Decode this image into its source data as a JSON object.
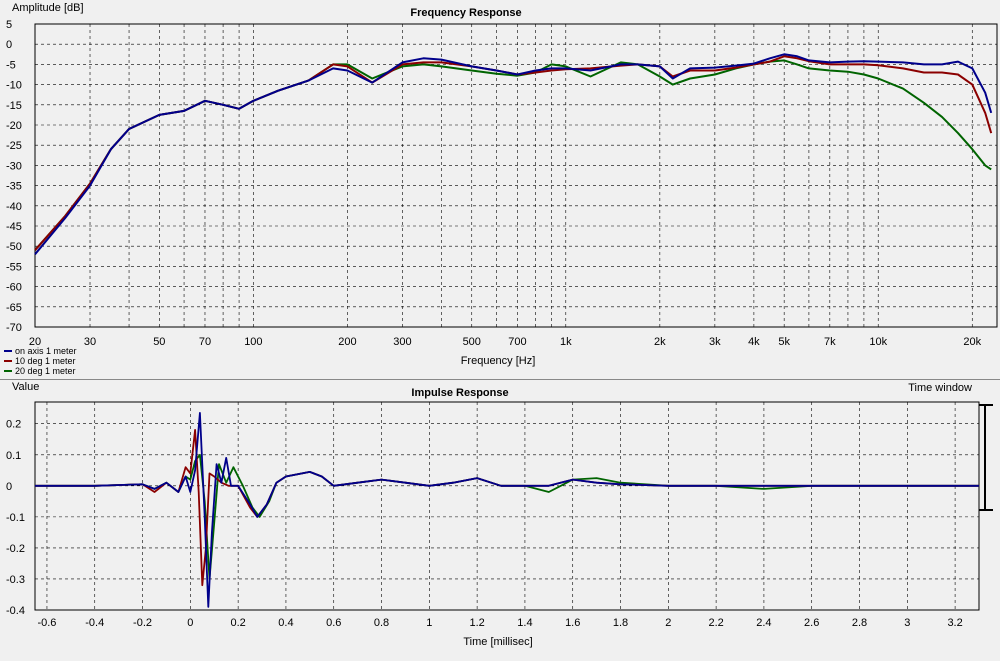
{
  "window": {
    "time_window_label": "Time window"
  },
  "chart_data": [
    {
      "type": "line",
      "title": "Frequency Response",
      "xlabel": "Frequency [Hz]",
      "ylabel": "Amplitude [dB]",
      "x_scale": "log",
      "xlim": [
        20,
        24000
      ],
      "ylim": [
        -70,
        5
      ],
      "xtick_values": [
        20,
        30,
        50,
        70,
        100,
        200,
        300,
        500,
        700,
        1000,
        2000,
        3000,
        4000,
        5000,
        7000,
        10000,
        20000
      ],
      "xtick_labels": [
        "20",
        "30",
        "50",
        "70",
        "100",
        "200",
        "300",
        "500",
        "700",
        "1k",
        "2k",
        "3k",
        "4k",
        "5k",
        "7k",
        "10k",
        "20k"
      ],
      "ytick_values": [
        5,
        0,
        -5,
        -10,
        -15,
        -20,
        -25,
        -30,
        -35,
        -40,
        -45,
        -50,
        -55,
        -60,
        -65,
        -70
      ],
      "ytick_labels": [
        "5",
        "0",
        "-5",
        "-10",
        "-15",
        "-20",
        "-25",
        "-30",
        "-35",
        "-40",
        "-45",
        "-50",
        "-55",
        "-60",
        "-65",
        "-70"
      ],
      "grid": true,
      "legend_position": "bottom-left",
      "series": [
        {
          "name": "on axis 1 meter",
          "color": "#00008b",
          "x": [
            20,
            25,
            30,
            35,
            40,
            50,
            60,
            70,
            80,
            90,
            100,
            120,
            150,
            180,
            200,
            240,
            300,
            350,
            400,
            500,
            600,
            700,
            800,
            900,
            1000,
            1200,
            1500,
            1700,
            2000,
            2200,
            2500,
            3000,
            3500,
            4000,
            4500,
            5000,
            5500,
            6000,
            7000,
            8000,
            9000,
            10000,
            12000,
            14000,
            16000,
            18000,
            20000,
            22000,
            23000
          ],
          "y": [
            -52,
            -43,
            -35,
            -26,
            -21,
            -17.5,
            -16.5,
            -14,
            -15,
            -16,
            -14,
            -11.5,
            -9,
            -6,
            -6.5,
            -9.5,
            -4.5,
            -3.5,
            -3.8,
            -5.5,
            -6.5,
            -7.5,
            -6.5,
            -6,
            -6,
            -6.5,
            -5,
            -5,
            -5.5,
            -8.5,
            -6,
            -5.8,
            -5.3,
            -4.8,
            -3.5,
            -2.5,
            -3,
            -4,
            -4.5,
            -4.3,
            -4.2,
            -4.3,
            -4.5,
            -5,
            -5,
            -4.3,
            -6,
            -12,
            -17
          ]
        },
        {
          "name": "10 deg 1 meter",
          "color": "#8b0000",
          "x": [
            20,
            25,
            30,
            35,
            40,
            50,
            60,
            70,
            80,
            90,
            100,
            120,
            150,
            180,
            200,
            240,
            300,
            350,
            400,
            500,
            600,
            700,
            800,
            900,
            1000,
            1200,
            1500,
            1700,
            2000,
            2200,
            2500,
            3000,
            3500,
            4000,
            4500,
            5000,
            5500,
            6000,
            7000,
            8000,
            9000,
            10000,
            12000,
            14000,
            16000,
            18000,
            20000,
            22000,
            23000
          ],
          "y": [
            -51,
            -42.5,
            -34.5,
            -26,
            -21,
            -17.5,
            -16.5,
            -14,
            -15,
            -16,
            -14,
            -11.5,
            -9,
            -5,
            -5.5,
            -9.5,
            -5,
            -4.5,
            -4.5,
            -5.5,
            -6.5,
            -7.5,
            -7,
            -6.5,
            -6.2,
            -6,
            -5.3,
            -5,
            -5.5,
            -8,
            -6.5,
            -6.5,
            -5.8,
            -5,
            -4.3,
            -3,
            -3.5,
            -4.2,
            -5,
            -5,
            -5,
            -5.2,
            -6,
            -7,
            -7,
            -7.5,
            -10,
            -17,
            -22
          ]
        },
        {
          "name": "20 deg 1 meter",
          "color": "#006400",
          "x": [
            20,
            25,
            30,
            35,
            40,
            50,
            60,
            70,
            80,
            90,
            100,
            120,
            150,
            180,
            200,
            240,
            300,
            350,
            400,
            500,
            600,
            700,
            800,
            900,
            1000,
            1200,
            1500,
            1700,
            2000,
            2200,
            2500,
            3000,
            3500,
            4000,
            4500,
            5000,
            5500,
            6000,
            7000,
            8000,
            9000,
            10000,
            12000,
            14000,
            16000,
            18000,
            20000,
            22000,
            23000
          ],
          "y": [
            -51,
            -42.5,
            -34.5,
            -26,
            -21,
            -17.5,
            -16.5,
            -14,
            -15,
            -16,
            -14,
            -11.5,
            -9,
            -5,
            -5,
            -8.5,
            -5.5,
            -5,
            -5.5,
            -6.5,
            -7.3,
            -7.8,
            -7,
            -5,
            -5.5,
            -8,
            -4.5,
            -5,
            -8,
            -10,
            -8.5,
            -7.5,
            -6,
            -5,
            -4.3,
            -4,
            -5,
            -6,
            -6.5,
            -6.8,
            -7.5,
            -8.5,
            -11,
            -14.5,
            -18,
            -22,
            -26,
            -30,
            -31
          ]
        }
      ]
    },
    {
      "type": "line",
      "title": "Impulse Response",
      "xlabel": "Time [millisec]",
      "ylabel": "Value",
      "xlim": [
        -0.65,
        3.3
      ],
      "ylim": [
        -0.4,
        0.27
      ],
      "xtick_values": [
        -0.6,
        -0.4,
        -0.2,
        0,
        0.2,
        0.4,
        0.6,
        0.8,
        1,
        1.2,
        1.4,
        1.6,
        1.8,
        2,
        2.2,
        2.4,
        2.6,
        2.8,
        3,
        3.2
      ],
      "xtick_labels": [
        "-0.6",
        "-0.4",
        "-0.2",
        "0",
        "0.2",
        "0.4",
        "0.6",
        "0.8",
        "1",
        "1.2",
        "1.4",
        "1.6",
        "1.8",
        "2",
        "2.2",
        "2.4",
        "2.6",
        "2.8",
        "3",
        "3.2"
      ],
      "ytick_values": [
        0.2,
        0.1,
        0,
        -0.1,
        -0.2,
        -0.3,
        -0.4
      ],
      "ytick_labels": [
        "0.2",
        "0.1",
        "0",
        "-0.1",
        "-0.2",
        "-0.3",
        "-0.4"
      ],
      "grid": true,
      "series": [
        {
          "name": "on axis 1 meter",
          "color": "#00008b",
          "x": [
            -0.65,
            -0.4,
            -0.2,
            -0.15,
            -0.1,
            -0.05,
            -0.02,
            0.0,
            0.02,
            0.04,
            0.06,
            0.075,
            0.09,
            0.11,
            0.13,
            0.15,
            0.17,
            0.2,
            0.25,
            0.28,
            0.32,
            0.36,
            0.4,
            0.5,
            0.55,
            0.6,
            0.7,
            0.8,
            0.9,
            1.0,
            1.1,
            1.2,
            1.3,
            1.4,
            1.5,
            1.6,
            1.7,
            1.8,
            2.0,
            2.2,
            2.4,
            2.6,
            2.8,
            3.0,
            3.3
          ],
          "y": [
            0,
            0,
            0.005,
            -0.01,
            0.01,
            -0.02,
            0.03,
            -0.02,
            0.05,
            0.235,
            -0.1,
            -0.39,
            -0.15,
            0.07,
            0.01,
            0.09,
            0.0,
            0.0,
            -0.06,
            -0.1,
            -0.06,
            0.01,
            0.03,
            0.045,
            0.03,
            0.0,
            0.01,
            0.02,
            0.01,
            0.0,
            0.01,
            0.025,
            0.0,
            0.0,
            0.0,
            0.02,
            0.01,
            0.005,
            0.0,
            0.0,
            0.0,
            0.0,
            0.0,
            0.0,
            0.0
          ]
        },
        {
          "name": "10 deg 1 meter",
          "color": "#8b0000",
          "x": [
            -0.65,
            -0.4,
            -0.2,
            -0.15,
            -0.1,
            -0.05,
            -0.02,
            0.0,
            0.02,
            0.035,
            0.05,
            0.065,
            0.08,
            0.1,
            0.13,
            0.16,
            0.2,
            0.25,
            0.28,
            0.32,
            0.36,
            0.4,
            0.5,
            0.55,
            0.6,
            0.7,
            0.8,
            0.9,
            1.0,
            1.1,
            1.2,
            1.3,
            1.4,
            1.5,
            1.6,
            1.7,
            1.8,
            2.0,
            2.2,
            2.4,
            2.6,
            2.8,
            3.0,
            3.3
          ],
          "y": [
            0,
            0,
            0.005,
            -0.02,
            0.01,
            -0.02,
            0.06,
            0.04,
            0.18,
            -0.02,
            -0.32,
            -0.2,
            0.04,
            0.03,
            0.01,
            0.0,
            0.0,
            -0.07,
            -0.1,
            -0.06,
            0.01,
            0.03,
            0.045,
            0.03,
            0.0,
            0.01,
            0.02,
            0.01,
            0.0,
            0.01,
            0.025,
            0.0,
            0.0,
            0.0,
            0.02,
            0.01,
            0.005,
            0.0,
            0.0,
            0.0,
            0.0,
            0.0,
            0.0,
            0.0
          ]
        },
        {
          "name": "20 deg 1 meter",
          "color": "#006400",
          "x": [
            -0.65,
            -0.4,
            -0.2,
            -0.15,
            -0.1,
            -0.05,
            -0.02,
            0.0,
            0.02,
            0.04,
            0.06,
            0.08,
            0.1,
            0.12,
            0.15,
            0.18,
            0.22,
            0.26,
            0.29,
            0.33,
            0.36,
            0.4,
            0.5,
            0.55,
            0.6,
            0.7,
            0.8,
            0.9,
            1.0,
            1.1,
            1.2,
            1.3,
            1.4,
            1.5,
            1.55,
            1.6,
            1.7,
            1.8,
            2.0,
            2.2,
            2.4,
            2.6,
            2.8,
            3.0,
            3.3
          ],
          "y": [
            0,
            0,
            0.005,
            -0.01,
            0.01,
            -0.02,
            0.03,
            0.02,
            0.08,
            0.1,
            -0.05,
            -0.3,
            -0.12,
            0.07,
            0.01,
            0.06,
            0.0,
            -0.07,
            -0.1,
            -0.05,
            0.01,
            0.03,
            0.045,
            0.03,
            0.0,
            0.01,
            0.02,
            0.01,
            0.0,
            0.01,
            0.025,
            0.0,
            0.0,
            -0.02,
            0.0,
            0.02,
            0.025,
            0.01,
            0.0,
            0.0,
            -0.01,
            0.0,
            0.0,
            0.0,
            0.0
          ]
        }
      ]
    }
  ]
}
